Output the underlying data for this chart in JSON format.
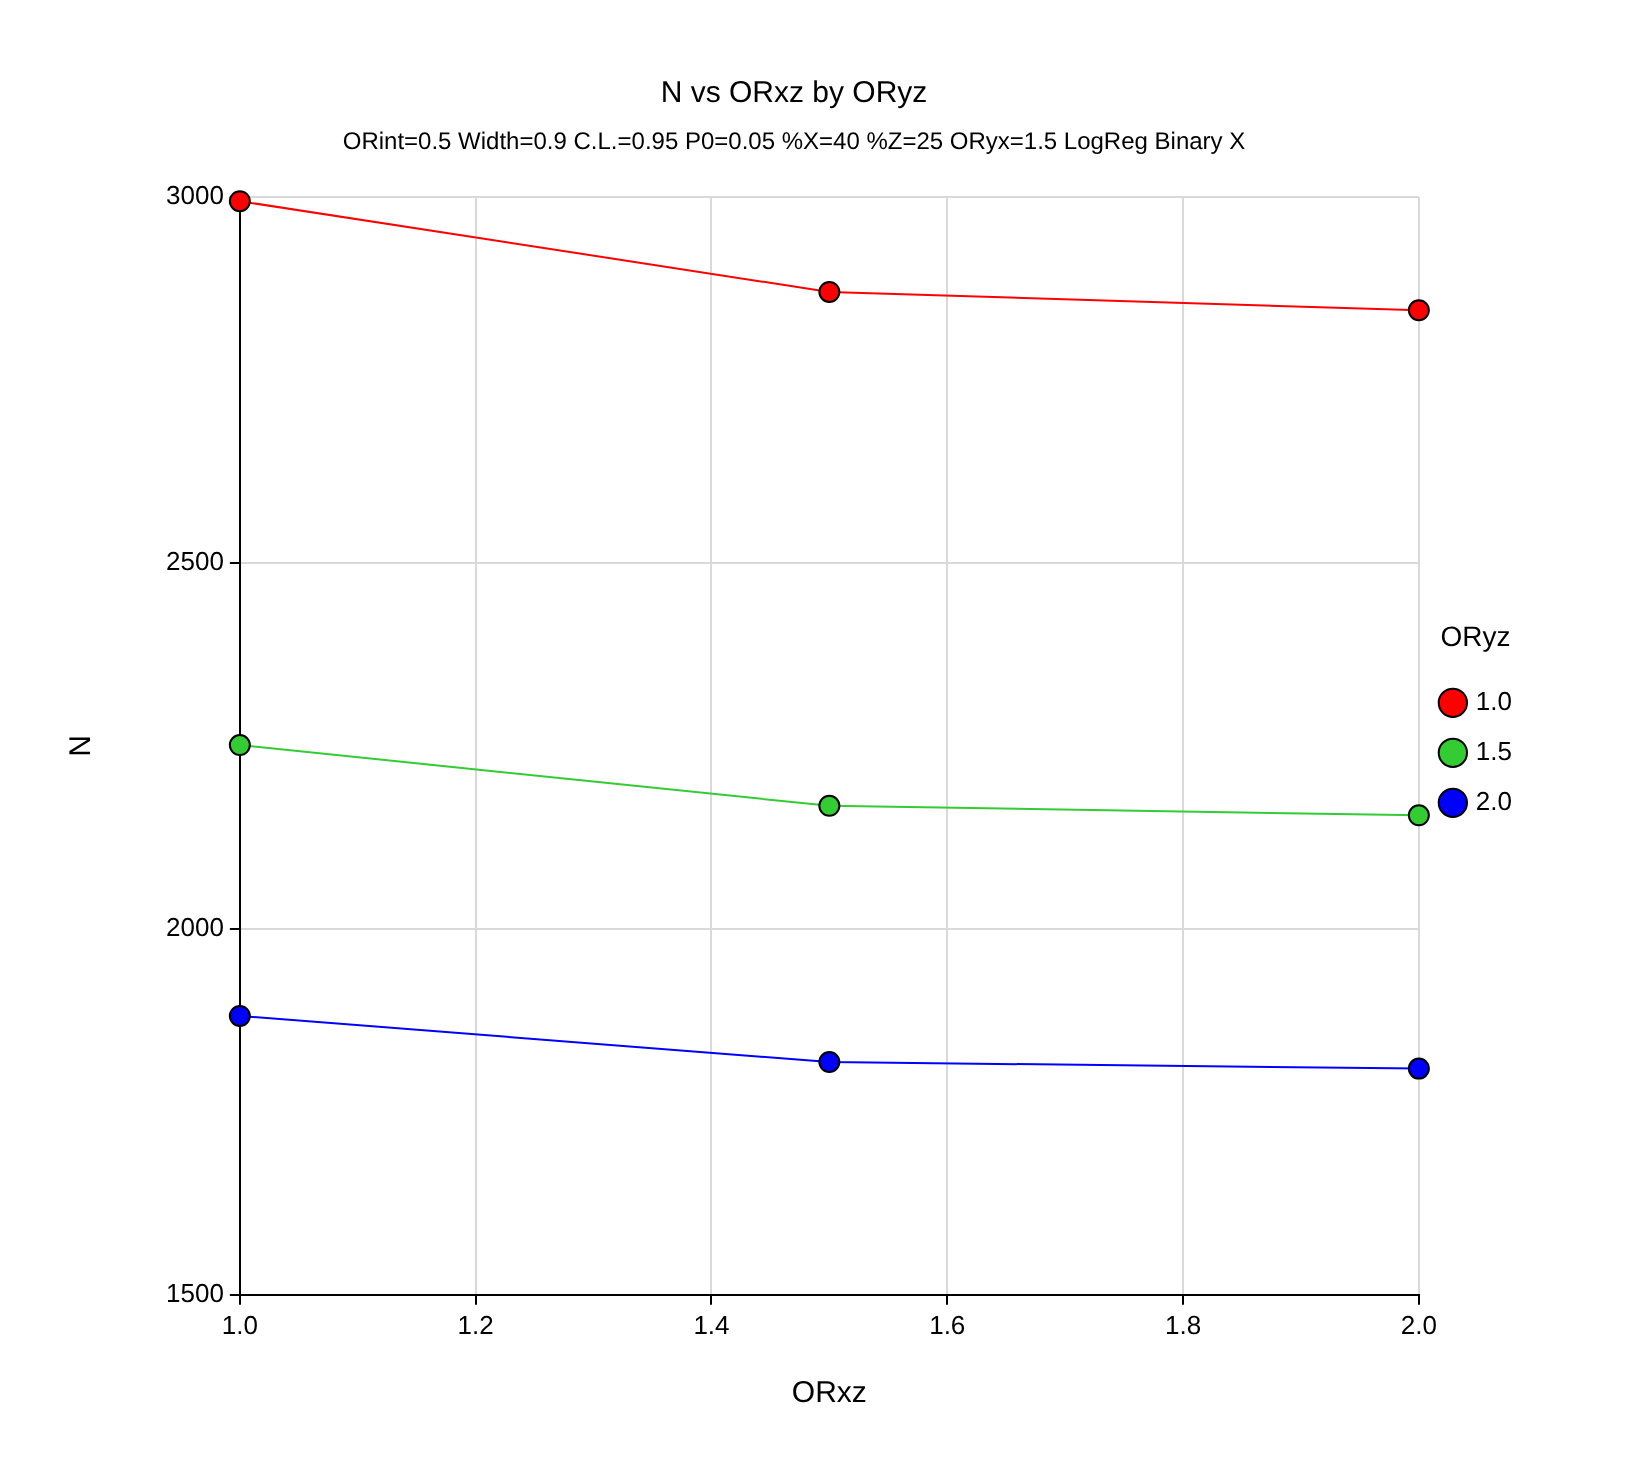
{
  "chart_data": {
    "type": "line",
    "title": "N vs ORxz by ORyz",
    "subtitle": "ORint=0.5 Width=0.9 C.L.=0.95 P0=0.05 %X=40 %Z=25 ORyx=1.5 LogReg Binary X",
    "xlabel": "ORxz",
    "ylabel": "N",
    "legend_title": "ORyz",
    "x": [
      1.0,
      1.5,
      2.0
    ],
    "series": [
      {
        "name": "1.0",
        "color": "#ff0000",
        "values": [
          2994,
          2870,
          2845
        ]
      },
      {
        "name": "1.5",
        "color": "#33cc33",
        "values": [
          2251,
          2168,
          2155
        ]
      },
      {
        "name": "2.0",
        "color": "#0000ff",
        "values": [
          1881,
          1818,
          1809
        ]
      }
    ],
    "xlim": [
      1.0,
      2.0
    ],
    "xticks": [
      {
        "value": 1.0,
        "label": "1.0"
      },
      {
        "value": 1.2,
        "label": "1.2"
      },
      {
        "value": 1.4,
        "label": "1.4"
      },
      {
        "value": 1.6,
        "label": "1.6"
      },
      {
        "value": 1.8,
        "label": "1.8"
      },
      {
        "value": 2.0,
        "label": "2.0"
      }
    ],
    "ylim": [
      1500,
      3000
    ],
    "yticks": [
      1500,
      2000,
      2500,
      3000
    ],
    "grid": true,
    "legend": "right",
    "marker": "circle",
    "line_style": "solid"
  }
}
